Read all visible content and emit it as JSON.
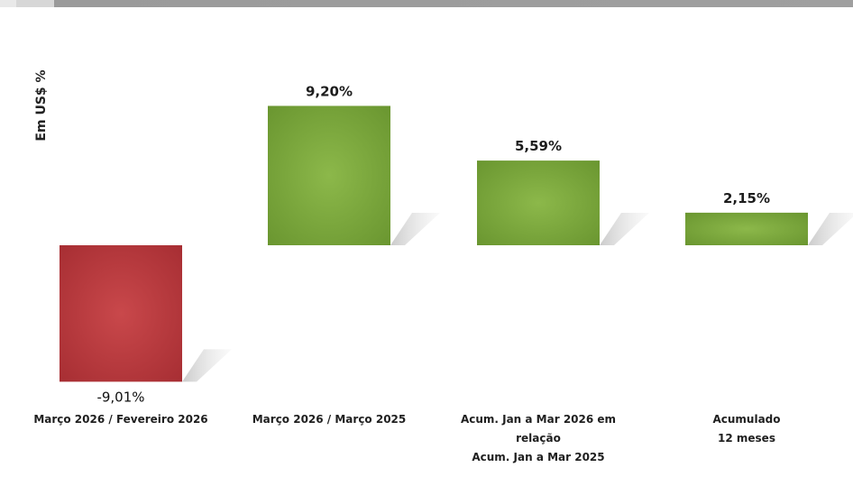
{
  "chart_data": {
    "type": "bar",
    "ylabel": "Em US$ %",
    "categories": [
      "Março 2026 / Fevereiro 2026",
      "Março 2026 / Março 2025",
      "Acum. Jan a Mar 2026 em\nrelação\nAcum. Jan a Mar 2025",
      "Acumulado\n12 meses"
    ],
    "values": [
      -9.01,
      9.2,
      5.59,
      2.15
    ],
    "value_labels": [
      "-9,01%",
      "9,20%",
      "5,59%",
      "2,15%"
    ],
    "colors": {
      "positive": "#78a236",
      "negative": "#b33438"
    },
    "grid": false,
    "legend": "none"
  }
}
